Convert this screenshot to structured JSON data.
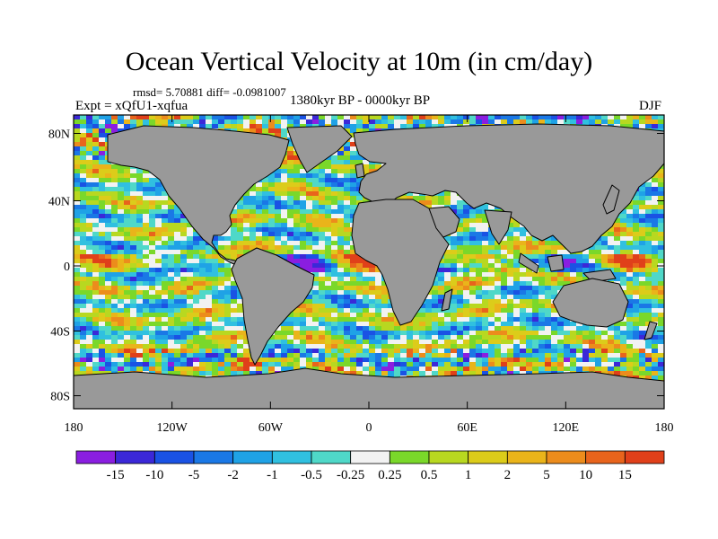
{
  "title": "Ocean Vertical Velocity at 10m (in cm/day)",
  "stats_line": "rmsd= 5.70881  diff= -0.0981007",
  "experiment": "Expt = xQfU1-xqfua",
  "period": "1380kyr BP - 0000kyr BP",
  "season": "DJF",
  "lat_ticks": [
    "80N",
    "40N",
    "0",
    "40S",
    "80S"
  ],
  "lon_ticks": [
    "180",
    "120W",
    "60W",
    "0",
    "60E",
    "120E",
    "180"
  ],
  "colorbar": {
    "labels": [
      "-15",
      "-10",
      "-5",
      "-2",
      "-1",
      "-0.5",
      "-0.25",
      "0.25",
      "0.5",
      "1",
      "2",
      "5",
      "10",
      "15"
    ],
    "colors": [
      "#8a1ee0",
      "#3b28d8",
      "#1a52e4",
      "#1a78e6",
      "#1fa2e6",
      "#30c0e0",
      "#4fd8c8",
      "#f2f2f2",
      "#7ad82a",
      "#b8d820",
      "#dccc1a",
      "#eab41a",
      "#ec8c1c",
      "#e8641c",
      "#e0401a"
    ]
  },
  "land_color": "#999999"
}
